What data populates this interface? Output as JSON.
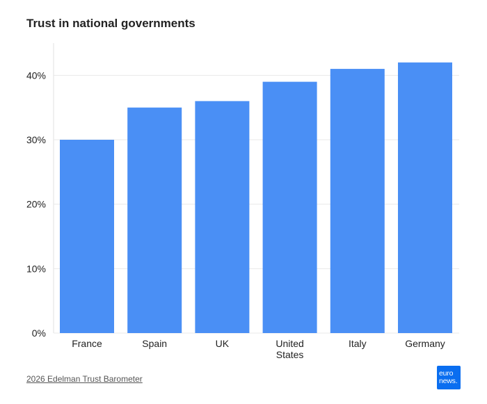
{
  "chart_data": {
    "type": "bar",
    "title": "Trust in national governments",
    "categories": [
      [
        "France"
      ],
      [
        "Spain"
      ],
      [
        "UK"
      ],
      [
        "United",
        "States"
      ],
      [
        "Italy"
      ],
      [
        "Germany"
      ]
    ],
    "values": [
      30,
      35,
      36,
      39,
      41,
      42
    ],
    "ylim": [
      0,
      45
    ],
    "yticks": [
      0,
      10,
      20,
      30,
      40
    ],
    "ytick_labels": [
      "0%",
      "10%",
      "20%",
      "30%",
      "40%"
    ],
    "xlabel": "",
    "ylabel": "",
    "grid": true,
    "bar_color": "#4a8ff5"
  },
  "source": "2026 Edelman Trust Barometer",
  "logo": {
    "line1": "euro",
    "line2": "news.",
    "color": "#0a6ef0"
  }
}
